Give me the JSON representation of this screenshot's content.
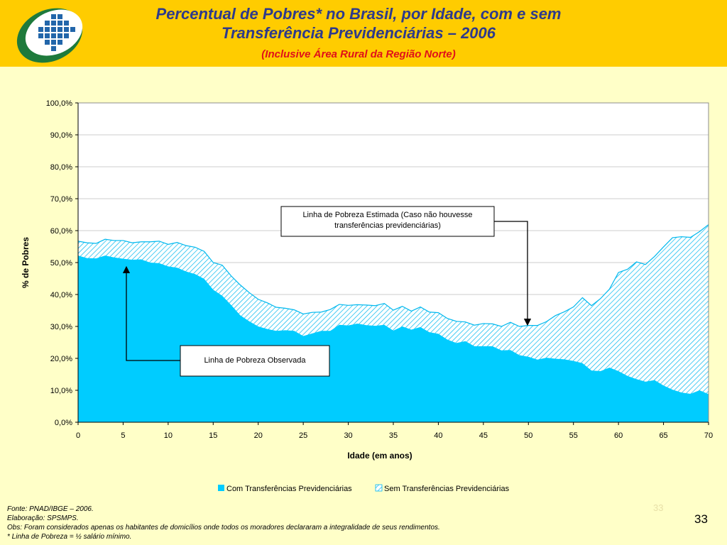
{
  "header": {
    "title_line1": "Percentual de Pobres* no Brasil, por Idade, com e sem",
    "title_line2": "Transferência Previdenciárias – 2006",
    "subtitle": "(Inclusive Área Rural da Região Norte)"
  },
  "colors": {
    "header_bg": "#FFCC00",
    "slide_bg": "#FFFFC8",
    "title": "#2E3A8C",
    "subtitle": "#E0101A",
    "series_with": "#00CCFF",
    "series_without_hatch": "#00CCFF",
    "logo_green": "#1E7A3C",
    "logo_blue": "#2266AA"
  },
  "icons": {
    "logo": "ministry-logo-icon"
  },
  "chart_data": {
    "type": "area",
    "xlabel": "Idade (em anos)",
    "ylabel": "% de Pobres",
    "xlim": [
      0,
      70
    ],
    "ylim": [
      0,
      100
    ],
    "x_ticks": [
      "0",
      "5",
      "10",
      "15",
      "20",
      "25",
      "30",
      "35",
      "40",
      "45",
      "50",
      "55",
      "60",
      "65",
      "70"
    ],
    "y_ticks": [
      "0,0%",
      "10,0%",
      "20,0%",
      "30,0%",
      "40,0%",
      "50,0%",
      "60,0%",
      "70,0%",
      "80,0%",
      "90,0%",
      "100,0%"
    ],
    "grid": "horizontal",
    "legend_position": "bottom",
    "x": [
      0,
      1,
      2,
      3,
      4,
      5,
      6,
      7,
      8,
      9,
      10,
      11,
      12,
      13,
      14,
      15,
      16,
      17,
      18,
      19,
      20,
      21,
      22,
      23,
      24,
      25,
      26,
      27,
      28,
      29,
      30,
      31,
      32,
      33,
      34,
      35,
      36,
      37,
      38,
      39,
      40,
      41,
      42,
      43,
      44,
      45,
      46,
      47,
      48,
      49,
      50,
      51,
      52,
      53,
      54,
      55,
      56,
      57,
      58,
      59,
      60,
      61,
      62,
      63,
      64,
      65,
      66,
      67,
      68,
      69,
      70
    ],
    "series": [
      {
        "name": "Com Transferências Previdenciárias",
        "values": [
          52.2,
          51.4,
          51.3,
          52.2,
          51.6,
          51.2,
          50.9,
          51.0,
          50.0,
          49.8,
          48.8,
          48.4,
          47.2,
          46.4,
          44.9,
          41.5,
          39.6,
          36.7,
          33.5,
          31.6,
          30.0,
          29.2,
          28.6,
          28.8,
          28.6,
          27.0,
          27.8,
          28.6,
          28.6,
          30.5,
          30.3,
          30.9,
          30.4,
          30.2,
          30.5,
          28.7,
          30.0,
          29.0,
          29.8,
          28.2,
          27.7,
          25.9,
          24.8,
          25.4,
          23.8,
          23.8,
          23.8,
          22.5,
          22.6,
          21.0,
          20.5,
          19.6,
          20.2,
          19.9,
          19.7,
          19.2,
          18.5,
          16.2,
          16.0,
          17.1,
          16.0,
          14.5,
          13.5,
          12.7,
          13.2,
          11.5,
          10.2,
          9.3,
          8.9,
          10.0,
          8.8
        ]
      },
      {
        "name": "Sem Transferências Previdenciárias",
        "values": [
          56.7,
          56.2,
          56.0,
          57.3,
          56.9,
          56.9,
          56.2,
          56.5,
          56.5,
          56.7,
          55.7,
          56.3,
          55.3,
          54.8,
          53.5,
          50.0,
          49.2,
          45.8,
          43.0,
          40.6,
          38.5,
          37.4,
          36.0,
          35.7,
          35.2,
          33.9,
          34.4,
          34.5,
          35.3,
          36.9,
          36.6,
          36.8,
          36.7,
          36.5,
          37.2,
          35.1,
          36.3,
          34.8,
          36.1,
          34.5,
          34.3,
          32.5,
          31.6,
          31.4,
          30.4,
          30.9,
          30.8,
          30.0,
          31.3,
          30.0,
          30.3,
          30.3,
          31.5,
          33.4,
          34.6,
          36.1,
          39.0,
          36.5,
          38.7,
          41.7,
          46.9,
          47.9,
          50.2,
          49.4,
          51.9,
          54.9,
          57.8,
          58.1,
          57.9,
          59.7,
          61.9
        ]
      }
    ],
    "annotations": [
      {
        "text": "Linha de Pobreza Estimada (Caso não houvesse transferências previdenciárias)",
        "points_to_x": 50
      },
      {
        "text": "Linha de Pobreza Observada",
        "points_to_x": 5
      }
    ]
  },
  "footer": {
    "source": "Fonte: PNAD/IBGE – 2006.",
    "elaboration": "Elaboração: SPSMPS.",
    "obs": "Obs: Foram considerados apenas os habitantes de domicílios onde todos os moradores declararam a integralidade de seus rendimentos.",
    "note": "* Linha de Pobreza = ½ salário mínimo.",
    "page_number": "33",
    "slide_mark": "33"
  }
}
